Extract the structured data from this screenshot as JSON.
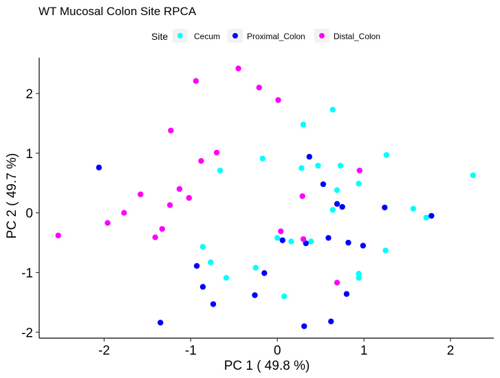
{
  "chart_data": {
    "type": "scatter",
    "title": "WT Mucosal Colon Site RPCA",
    "xlabel": "PC 1 ( 49.8 %)",
    "ylabel": "PC 2 ( 49.7 %)",
    "xlim": [
      -2.75,
      2.5
    ],
    "ylim": [
      -2.1,
      2.6
    ],
    "x_ticks": [
      -2,
      -1,
      0,
      1,
      2
    ],
    "y_ticks": [
      -2,
      -1,
      0,
      1,
      2
    ],
    "grid": false,
    "legend": {
      "title": "Site",
      "position": "top"
    },
    "series": [
      {
        "name": "Cecum",
        "color": "#00FFFF",
        "points": [
          [
            0.3,
            1.48
          ],
          [
            0.64,
            1.73
          ],
          [
            1.26,
            0.97
          ],
          [
            2.26,
            0.63
          ],
          [
            -0.17,
            0.91
          ],
          [
            0.28,
            0.75
          ],
          [
            0.47,
            0.79
          ],
          [
            0.73,
            0.79
          ],
          [
            -0.66,
            0.71
          ],
          [
            0.94,
            0.49
          ],
          [
            0.69,
            0.38
          ],
          [
            0.64,
            0.05
          ],
          [
            1.57,
            0.07
          ],
          [
            1.72,
            -0.08
          ],
          [
            0.0,
            -0.42
          ],
          [
            0.16,
            -0.48
          ],
          [
            0.39,
            -0.48
          ],
          [
            1.25,
            -0.63
          ],
          [
            -0.86,
            -0.57
          ],
          [
            -0.77,
            -0.83
          ],
          [
            -0.59,
            -1.09
          ],
          [
            -0.25,
            -0.92
          ],
          [
            0.08,
            -1.4
          ],
          [
            0.94,
            -1.02
          ],
          [
            0.94,
            -1.09
          ]
        ]
      },
      {
        "name": "Proximal_Colon",
        "color": "#0000FF",
        "points": [
          [
            -2.06,
            0.76
          ],
          [
            0.37,
            0.94
          ],
          [
            0.53,
            0.48
          ],
          [
            0.69,
            0.15
          ],
          [
            0.75,
            0.1
          ],
          [
            1.24,
            0.09
          ],
          [
            1.78,
            -0.05
          ],
          [
            0.06,
            -0.46
          ],
          [
            0.33,
            -0.51
          ],
          [
            0.59,
            -0.42
          ],
          [
            0.82,
            -0.5
          ],
          [
            0.99,
            -0.55
          ],
          [
            -0.93,
            -0.89
          ],
          [
            -0.86,
            -1.24
          ],
          [
            -0.74,
            -1.53
          ],
          [
            -0.15,
            -1.01
          ],
          [
            -0.26,
            -1.38
          ],
          [
            0.8,
            -1.36
          ],
          [
            -1.35,
            -1.84
          ],
          [
            0.31,
            -1.9
          ],
          [
            0.62,
            -1.82
          ]
        ]
      },
      {
        "name": "Distal_Colon",
        "color": "#FF00FF",
        "points": [
          [
            -0.45,
            2.42
          ],
          [
            -0.94,
            2.21
          ],
          [
            -0.21,
            2.1
          ],
          [
            0.01,
            1.89
          ],
          [
            -1.23,
            1.38
          ],
          [
            -0.7,
            1.01
          ],
          [
            -0.88,
            0.87
          ],
          [
            0.95,
            0.71
          ],
          [
            -1.13,
            0.4
          ],
          [
            -1.58,
            0.31
          ],
          [
            -1.02,
            0.25
          ],
          [
            0.29,
            0.28
          ],
          [
            -1.24,
            0.13
          ],
          [
            -1.77,
            0.0
          ],
          [
            -1.96,
            -0.17
          ],
          [
            -1.33,
            -0.27
          ],
          [
            -1.41,
            -0.41
          ],
          [
            -2.53,
            -0.38
          ],
          [
            0.04,
            -0.31
          ],
          [
            0.3,
            -0.44
          ],
          [
            0.69,
            -1.17
          ]
        ]
      }
    ]
  }
}
